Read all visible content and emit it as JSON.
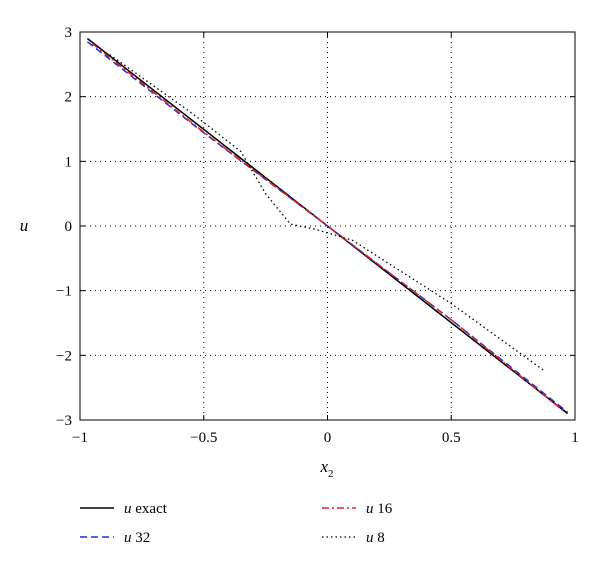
{
  "chart_data": {
    "type": "line",
    "xlabel": "x",
    "xlabel_subscript": "2",
    "ylabel": "u",
    "xlim": [
      -1,
      1
    ],
    "ylim": [
      -3,
      3
    ],
    "xticks": [
      -1,
      -0.5,
      0,
      0.5,
      1
    ],
    "yticks": [
      -3,
      -2,
      -1,
      0,
      1,
      2,
      3
    ],
    "xtick_labels": [
      "−1",
      "−0.5",
      "0",
      "0.5",
      "1"
    ],
    "ytick_labels": [
      "−3",
      "−2",
      "−1",
      "0",
      "1",
      "2",
      "3"
    ],
    "grid": true,
    "legend_position": "bottom",
    "series": [
      {
        "name": "u exact",
        "name_symbol": "u",
        "name_rest": " exact",
        "color": "#000000",
        "dash": "solid",
        "x": [
          -0.97,
          0.97
        ],
        "y": [
          2.9,
          -2.9
        ]
      },
      {
        "name": "u 32",
        "name_symbol": "u",
        "name_rest": " 32",
        "color": "#1f2fd6",
        "dash": "dashed",
        "x": [
          -0.97,
          -0.5,
          0,
          0.5,
          0.97
        ],
        "y": [
          2.85,
          1.44,
          0.0,
          -1.45,
          -2.88
        ]
      },
      {
        "name": "u 16",
        "name_symbol": "u",
        "name_rest": " 16",
        "color": "#e02020",
        "dash": "dashdot",
        "x": [
          -0.95,
          -0.5,
          0,
          0.5,
          0.95
        ],
        "y": [
          2.82,
          1.45,
          0.0,
          -1.45,
          -2.85
        ]
      },
      {
        "name": "u 8",
        "name_symbol": "u",
        "name_rest": " 8",
        "color": "#000000",
        "dash": "dotted",
        "x": [
          -0.88,
          -0.55,
          -0.35,
          -0.25,
          -0.15,
          -0.05,
          0.1,
          0.5,
          0.88
        ],
        "y": [
          2.65,
          1.75,
          1.15,
          0.5,
          0.03,
          -0.05,
          -0.22,
          -1.2,
          -2.25
        ]
      }
    ]
  }
}
